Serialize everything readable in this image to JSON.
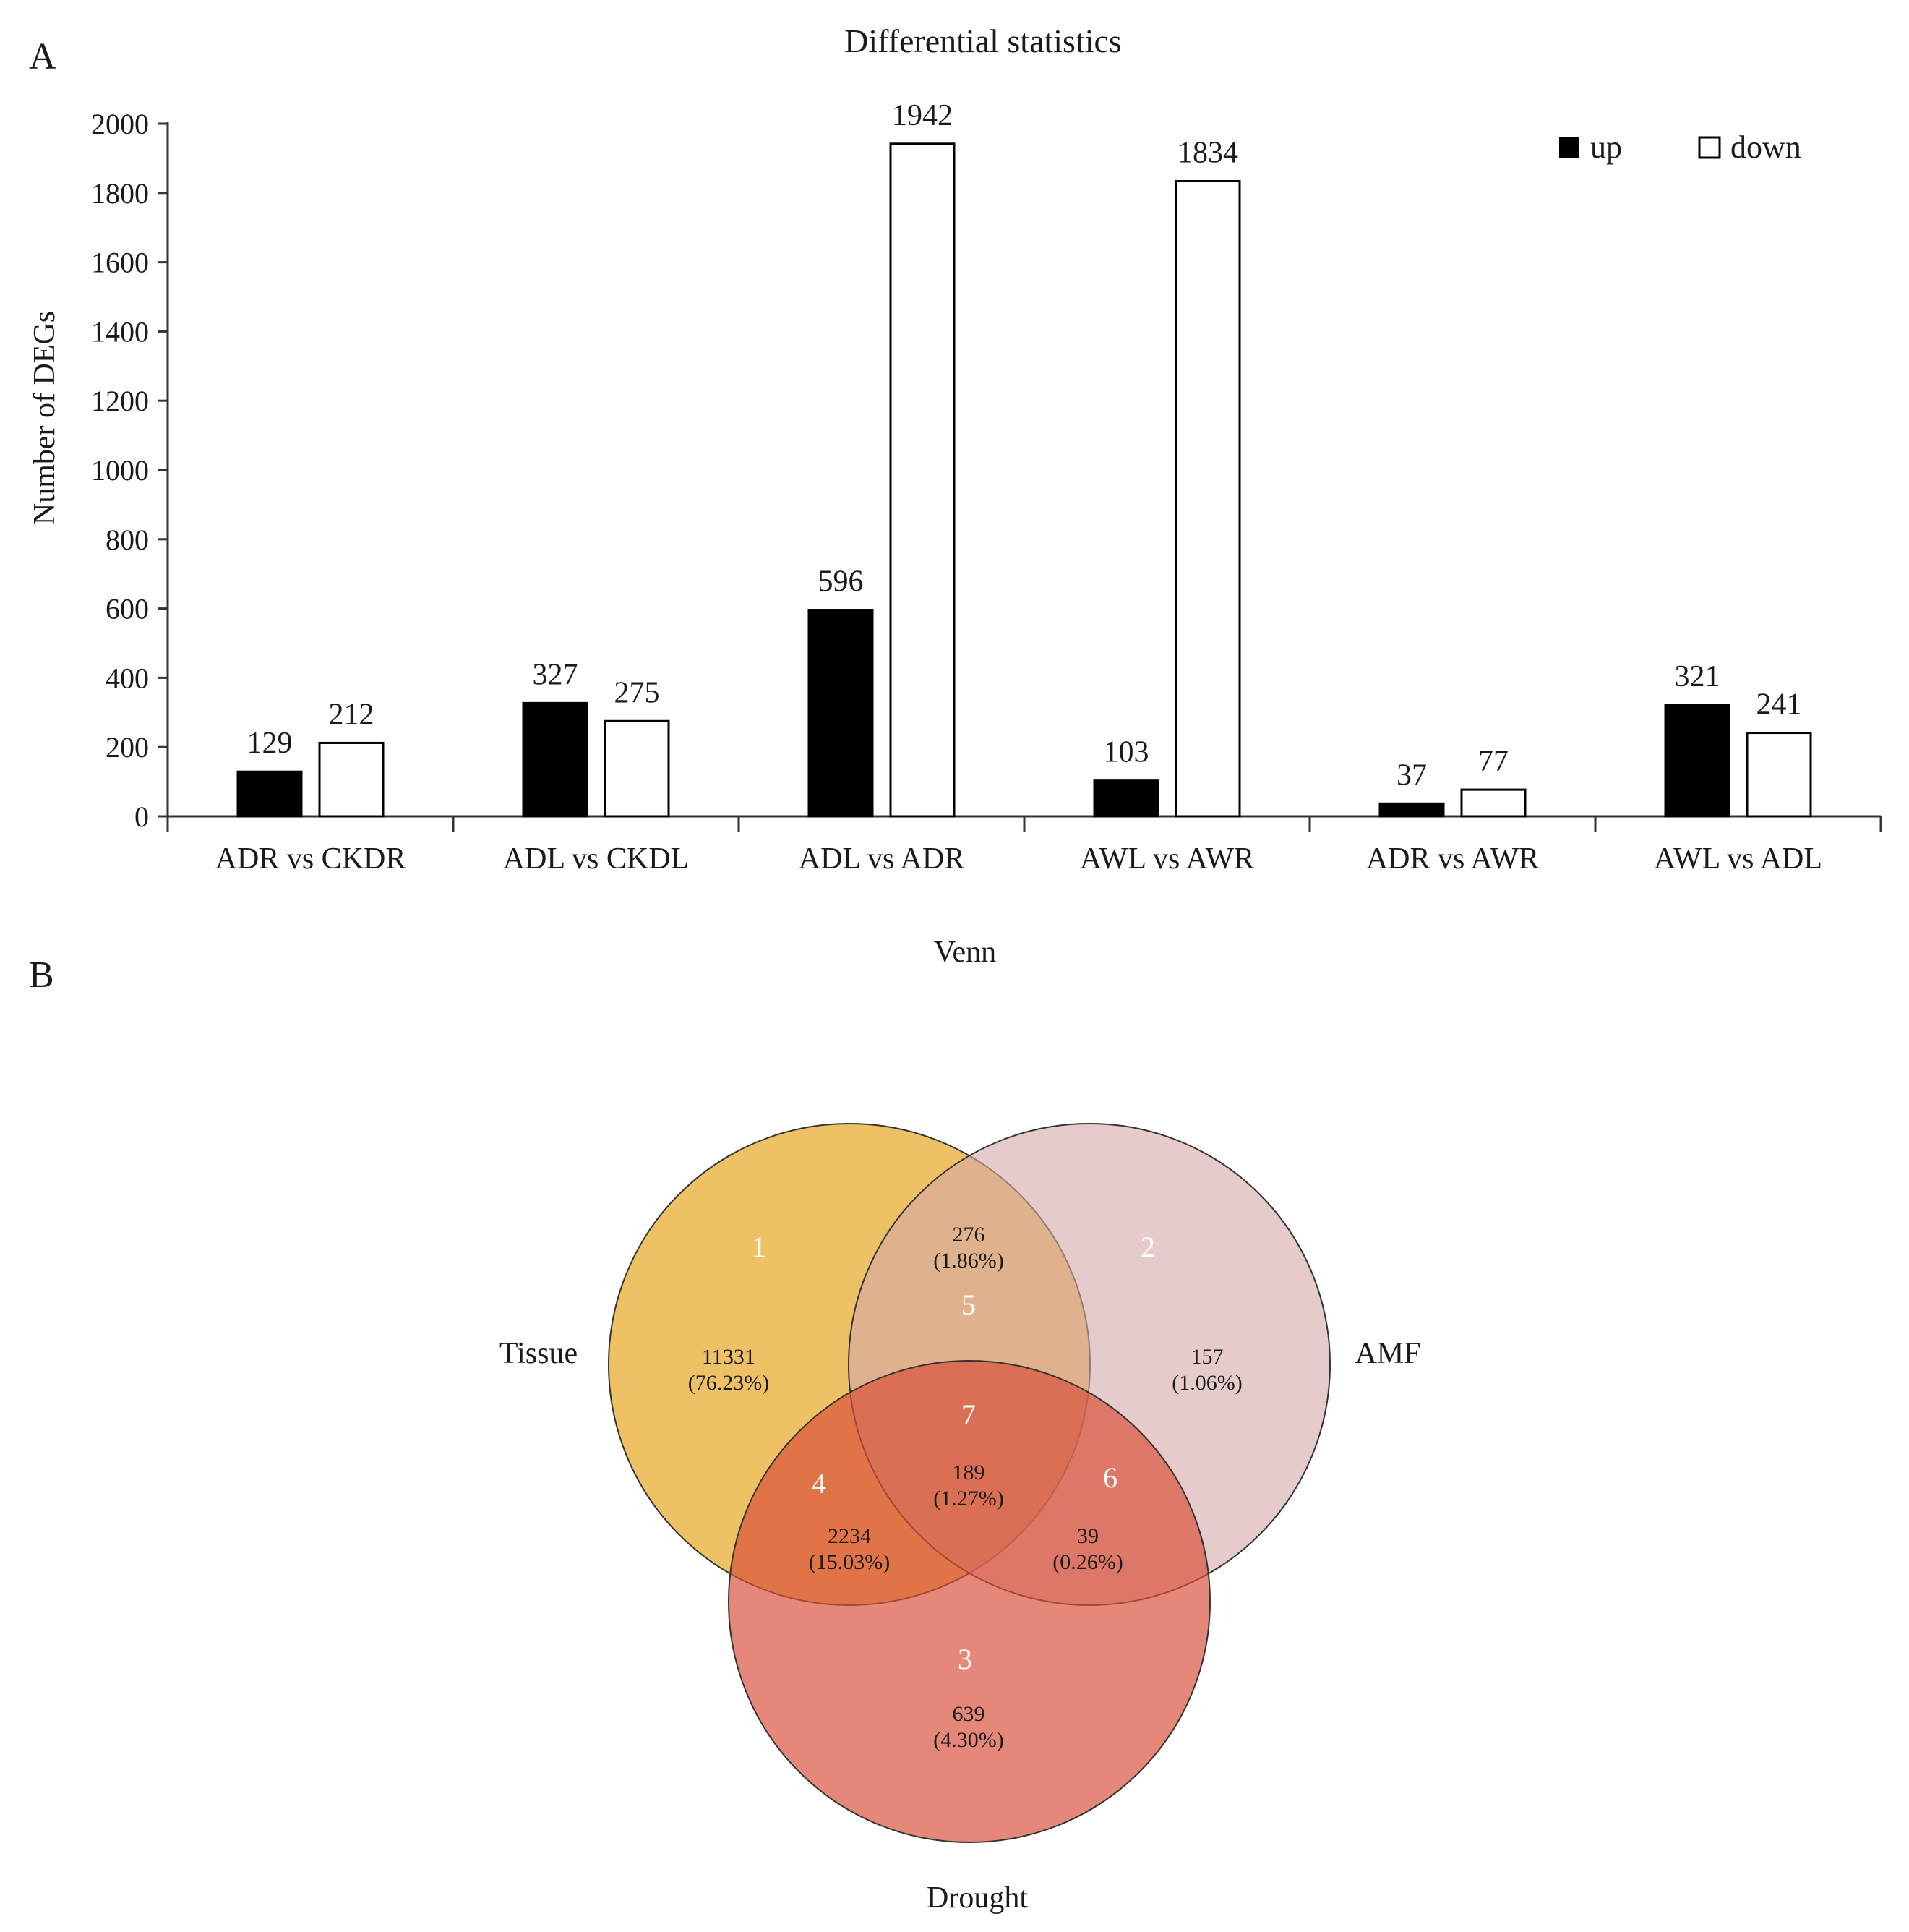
{
  "panel_a": {
    "label": "A",
    "chart_data": {
      "type": "bar",
      "title": "Differential statistics",
      "xlabel": "",
      "ylabel": "Number of DEGs",
      "ylim": [
        0,
        2000
      ],
      "yticks": [
        0,
        200,
        400,
        600,
        800,
        1000,
        1200,
        1400,
        1600,
        1800,
        2000
      ],
      "categories": [
        "ADR vs CKDR",
        "ADL vs CKDL",
        "ADL vs ADR",
        "AWL vs AWR",
        "ADR vs AWR",
        "AWL vs ADL"
      ],
      "series": [
        {
          "name": "up",
          "color": "#000000",
          "values": [
            129,
            327,
            596,
            103,
            37,
            321
          ]
        },
        {
          "name": "down",
          "color": "#ffffff",
          "values": [
            212,
            275,
            1942,
            1834,
            77,
            241
          ]
        }
      ],
      "legend_position": "top-right"
    }
  },
  "panel_b": {
    "label": "B",
    "title": "Venn",
    "sets": [
      {
        "name": "Tissue",
        "color": "#e8a928"
      },
      {
        "name": "AMF",
        "color": "#dcb6b6"
      },
      {
        "name": "Drought",
        "color": "#de6b58"
      }
    ],
    "regions": [
      {
        "id": "1",
        "count": "11331",
        "percent": "(76.23%)"
      },
      {
        "id": "2",
        "count": "157",
        "percent": "(1.06%)"
      },
      {
        "id": "3",
        "count": "639",
        "percent": "(4.30%)"
      },
      {
        "id": "4",
        "count": "2234",
        "percent": "(15.03%)"
      },
      {
        "id": "5",
        "count": "276",
        "percent": "(1.86%)"
      },
      {
        "id": "6",
        "count": "39",
        "percent": "(0.26%)"
      },
      {
        "id": "7",
        "count": "189",
        "percent": "(1.27%)"
      }
    ]
  }
}
